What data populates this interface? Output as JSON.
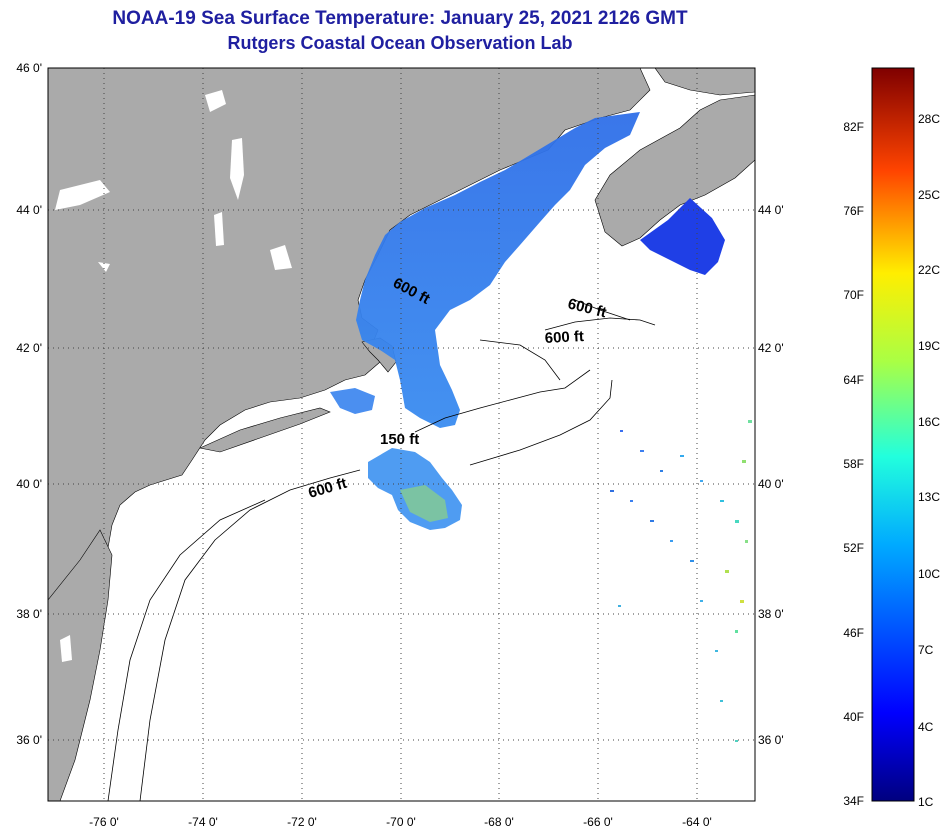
{
  "title": "NOAA-19 Sea Surface Temperature:  January 25, 2021 2126 GMT",
  "subtitle": "Rutgers Coastal Ocean Observation Lab",
  "map": {
    "lat_labels": [
      "46 0'",
      "44 0'",
      "42 0'",
      "40 0'",
      "38 0'",
      "36 0'"
    ],
    "lon_labels": [
      "-76 0'",
      "-74 0'",
      "-72 0'",
      "-70 0'",
      "-68 0'",
      "-66 0'",
      "-64 0'"
    ],
    "depth_labels": [
      "600 ft",
      "600 ft",
      "600 ft",
      "150 ft",
      "600 ft"
    ],
    "colors": {
      "land": "#aaaaaa",
      "ocean": "#ffffff",
      "grid": "#555555"
    }
  },
  "colorbar": {
    "fahrenheit": [
      "82F",
      "76F",
      "70F",
      "64F",
      "58F",
      "52F",
      "46F",
      "40F",
      "34F"
    ],
    "celsius": [
      "28C",
      "25C",
      "22C",
      "19C",
      "16C",
      "13C",
      "10C",
      "7C",
      "4C",
      "1C"
    ]
  }
}
